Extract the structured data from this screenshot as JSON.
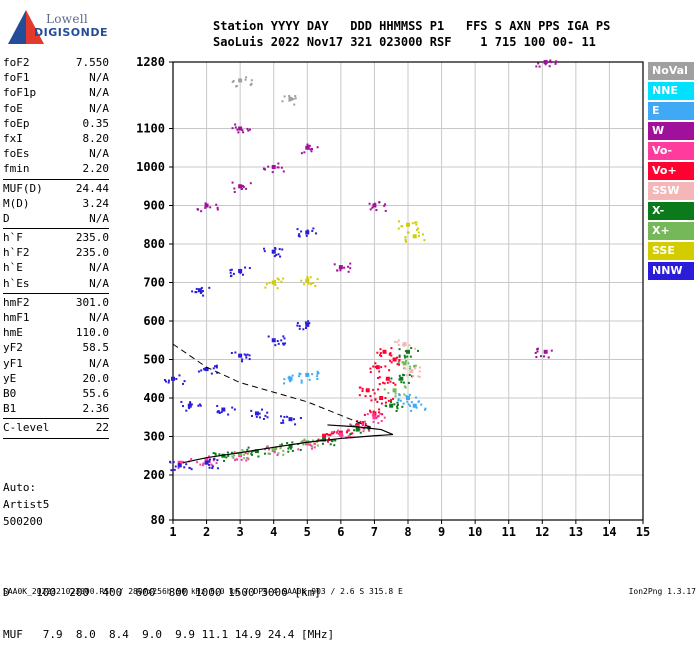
{
  "logo": {
    "top": "Lowell",
    "bottom": "DIGISONDE"
  },
  "header": {
    "line1": "Station YYYY DAY   DDD HHMMSS P1   FFS S AXN PPS IGA PS",
    "line2": "SaoLuis 2022 Nov17 321 023000 RSF    1 715 100 00- 11"
  },
  "params_group1": [
    {
      "name": "foF2",
      "value": "7.550"
    },
    {
      "name": "foF1",
      "value": "N/A"
    },
    {
      "name": "foF1p",
      "value": "N/A"
    },
    {
      "name": "foE",
      "value": "N/A"
    },
    {
      "name": "foEp",
      "value": "0.35"
    },
    {
      "name": "fxI",
      "value": "8.20"
    },
    {
      "name": "foEs",
      "value": "N/A"
    },
    {
      "name": "fmin",
      "value": "2.20"
    }
  ],
  "params_group2": [
    {
      "name": "MUF(D)",
      "value": "24.44"
    },
    {
      "name": "M(D)",
      "value": "3.24"
    },
    {
      "name": "D",
      "value": "N/A"
    }
  ],
  "params_group3": [
    {
      "name": "h`F",
      "value": "235.0"
    },
    {
      "name": "h`F2",
      "value": "235.0"
    },
    {
      "name": "h`E",
      "value": "N/A"
    },
    {
      "name": "h`Es",
      "value": "N/A"
    }
  ],
  "params_group4": [
    {
      "name": "hmF2",
      "value": "301.0"
    },
    {
      "name": "hmF1",
      "value": "N/A"
    },
    {
      "name": "hmE",
      "value": "110.0"
    },
    {
      "name": "yF2",
      "value": "58.5"
    },
    {
      "name": "yF1",
      "value": "N/A"
    },
    {
      "name": "yE",
      "value": "20.0"
    },
    {
      "name": "B0",
      "value": "55.6"
    },
    {
      "name": "B1",
      "value": "2.36"
    }
  ],
  "params_group5": [
    {
      "name": "C-level",
      "value": "22"
    }
  ],
  "extra": {
    "auto": "Auto:",
    "artist": "Artist5",
    "code": "500200"
  },
  "bottom_table": {
    "line1": "D    100  200  400  600  800 1000 1500 3000 [km]",
    "line2": "MUF   7.9  8.0  8.4  9.0  9.9 11.1 14.9 24.4 [MHz]"
  },
  "footer": {
    "left": "SAA0K_2022321023000.RSF / 280fx256h 50 kHz 5.0 km / DPS-4 SAA0K 903 / 2.6 S 315.8 E",
    "right": "Ion2Png 1.3.17"
  },
  "legend": [
    {
      "label": "NoVal",
      "bg": "#a0a0a0",
      "fg": "#ffffff"
    },
    {
      "label": "NNE",
      "bg": "#00e0ff",
      "fg": "#ffffff"
    },
    {
      "label": "E",
      "bg": "#3fa9f5",
      "fg": "#ffffff"
    },
    {
      "label": "W",
      "bg": "#a0109a",
      "fg": "#ffffff"
    },
    {
      "label": "Vo-",
      "bg": "#ff3c9e",
      "fg": "#ffffff"
    },
    {
      "label": "Vo+",
      "bg": "#ff0030",
      "fg": "#ffffff"
    },
    {
      "label": "SSW",
      "bg": "#f4b6b6",
      "fg": "#ffffff"
    },
    {
      "label": "X-",
      "bg": "#0a7a1a",
      "fg": "#ffffff"
    },
    {
      "label": "X+",
      "bg": "#74b85a",
      "fg": "#ffffff"
    },
    {
      "label": "SSE",
      "bg": "#d2cc00",
      "fg": "#ffffff"
    },
    {
      "label": "NNW",
      "bg": "#2a1cd8",
      "fg": "#ffffff"
    }
  ],
  "chart_data": {
    "type": "scatter",
    "xlim": [
      1,
      15
    ],
    "ylim": [
      80,
      1280
    ],
    "x_ticks": [
      1,
      2,
      3,
      4,
      5,
      6,
      7,
      8,
      9,
      10,
      11,
      12,
      13,
      14,
      15
    ],
    "y_ticks": [
      80,
      200,
      300,
      400,
      500,
      600,
      700,
      800,
      900,
      1000,
      1100,
      1280
    ],
    "grid": true,
    "series": [
      {
        "name": "Vo+",
        "color": "#ff0030",
        "points": [
          [
            5.5,
            302
          ],
          [
            6.0,
            310
          ],
          [
            6.5,
            330
          ],
          [
            7.0,
            360
          ],
          [
            7.2,
            400
          ],
          [
            7.4,
            450
          ],
          [
            7.6,
            500
          ],
          [
            7.1,
            480
          ],
          [
            6.8,
            420
          ],
          [
            7.3,
            520
          ]
        ]
      },
      {
        "name": "Vo-",
        "color": "#ff3c9e",
        "points": [
          [
            1.2,
            232
          ],
          [
            2.0,
            240
          ],
          [
            3.0,
            252
          ],
          [
            4.0,
            265
          ],
          [
            5.0,
            282
          ],
          [
            6.0,
            305
          ],
          [
            6.5,
            325
          ],
          [
            7.0,
            350
          ]
        ]
      },
      {
        "name": "X-",
        "color": "#0a7a1a",
        "points": [
          [
            2.5,
            250
          ],
          [
            3.5,
            262
          ],
          [
            4.5,
            275
          ],
          [
            5.5,
            292
          ],
          [
            6.5,
            318
          ],
          [
            7.5,
            380
          ],
          [
            7.8,
            450
          ],
          [
            8.0,
            520
          ]
        ]
      },
      {
        "name": "X+",
        "color": "#74b85a",
        "points": [
          [
            3.0,
            255
          ],
          [
            4.0,
            268
          ],
          [
            5.0,
            285
          ],
          [
            7.6,
            420
          ],
          [
            7.9,
            490
          ]
        ]
      },
      {
        "name": "NNW",
        "color": "#2a1cd8",
        "points": [
          [
            1.0,
            450
          ],
          [
            2.0,
            475
          ],
          [
            3.0,
            510
          ],
          [
            4.0,
            550
          ],
          [
            5.0,
            590
          ],
          [
            1.8,
            680
          ],
          [
            3.0,
            730
          ],
          [
            4.0,
            780
          ],
          [
            5.0,
            830
          ],
          [
            1.5,
            380
          ],
          [
            2.5,
            370
          ],
          [
            3.5,
            360
          ],
          [
            4.5,
            345
          ],
          [
            1.2,
            225
          ],
          [
            2.0,
            232
          ]
        ]
      },
      {
        "name": "W",
        "color": "#a0109a",
        "points": [
          [
            2.0,
            900
          ],
          [
            3.0,
            950
          ],
          [
            4.0,
            1000
          ],
          [
            5.0,
            1050
          ],
          [
            3.0,
            1100
          ],
          [
            12.1,
            1280
          ],
          [
            12.1,
            520
          ],
          [
            7.0,
            900
          ],
          [
            6.0,
            740
          ]
        ]
      },
      {
        "name": "E",
        "color": "#3fa9f5",
        "points": [
          [
            4.5,
            450
          ],
          [
            5.0,
            460
          ],
          [
            8.0,
            400
          ],
          [
            8.2,
            380
          ]
        ]
      },
      {
        "name": "SSE",
        "color": "#d2cc00",
        "points": [
          [
            4.0,
            700
          ],
          [
            5.0,
            705
          ],
          [
            8.0,
            850
          ],
          [
            8.2,
            820
          ]
        ]
      },
      {
        "name": "SSW",
        "color": "#f4b6b6",
        "points": [
          [
            7.9,
            540
          ],
          [
            8.1,
            470
          ]
        ]
      },
      {
        "name": "NoVal",
        "color": "#a0a0a0",
        "points": [
          [
            3.0,
            1230
          ],
          [
            4.5,
            1180
          ]
        ]
      }
    ]
  }
}
